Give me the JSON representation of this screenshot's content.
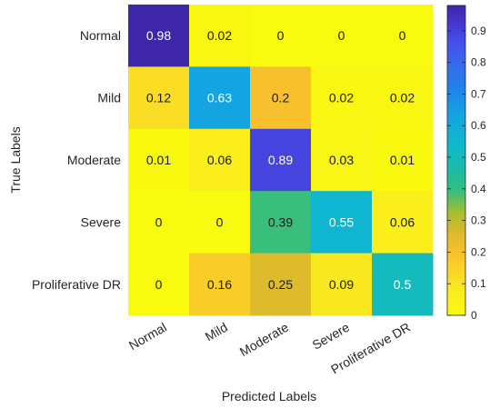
{
  "chart_data": {
    "type": "heatmap",
    "title": "",
    "xlabel": "Predicted Labels",
    "ylabel": "True Labels",
    "x_categories": [
      "Normal",
      "Mild",
      "Moderate",
      "Severe",
      "Proliferative DR"
    ],
    "y_categories": [
      "Normal",
      "Mild",
      "Moderate",
      "Severe",
      "Proliferative DR"
    ],
    "values": [
      [
        0.98,
        0.02,
        0,
        0,
        0
      ],
      [
        0.12,
        0.63,
        0.2,
        0.02,
        0.02
      ],
      [
        0.01,
        0.06,
        0.89,
        0.03,
        0.01
      ],
      [
        0,
        0,
        0.39,
        0.55,
        0.06
      ],
      [
        0,
        0.16,
        0.25,
        0.09,
        0.5
      ]
    ],
    "value_labels": [
      [
        "0.98",
        "0.02",
        "0",
        "0",
        "0"
      ],
      [
        "0.12",
        "0.63",
        "0.2",
        "0.02",
        "0.02"
      ],
      [
        "0.01",
        "0.06",
        "0.89",
        "0.03",
        "0.01"
      ],
      [
        "0",
        "0",
        "0.39",
        "0.55",
        "0.06"
      ],
      [
        "0",
        "0.16",
        "0.25",
        "0.09",
        "0.5"
      ]
    ],
    "colormap": "parula",
    "colorbar": {
      "range": [
        0,
        0.98
      ],
      "ticks": [
        0,
        0.1,
        0.2,
        0.3,
        0.4,
        0.5,
        0.6,
        0.7,
        0.8,
        0.9
      ],
      "tick_labels": [
        "0",
        "0.1",
        "0.2",
        "0.3",
        "0.4",
        "0.5",
        "0.6",
        "0.7",
        "0.8",
        "0.9"
      ],
      "placement": "right"
    },
    "grid": false
  }
}
